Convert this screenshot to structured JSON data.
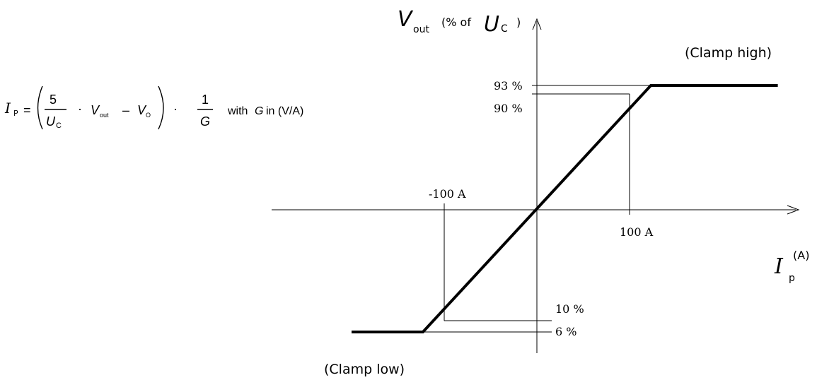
{
  "chart_data": {
    "type": "line",
    "y_axis": {
      "symbol": "V",
      "subscript": "out",
      "unit_prefix": "(% of",
      "unit_symbol": "U",
      "unit_subscript": "C",
      "unit_suffix": ")"
    },
    "x_axis": {
      "symbol": "I",
      "subscript": "p",
      "unit": "(A)"
    },
    "series": [
      {
        "x": [
          -200,
          -123,
          123,
          260
        ],
        "y": [
          6,
          6,
          93,
          93
        ]
      }
    ],
    "reference_points": [
      {
        "x": -100,
        "y": 10
      },
      {
        "x": 100,
        "y": 90
      }
    ],
    "tick_labels": {
      "y_93": "93 %",
      "y_90": "90 %",
      "y_10": "10 %",
      "y_6": "6 %",
      "x_neg100": "-100 A",
      "x_100": "100 A"
    },
    "annotations": {
      "clamp_high": "(Clamp high)",
      "clamp_low": "(Clamp low)"
    }
  },
  "formula": {
    "lhs_symbol": "I",
    "lhs_sub": "P",
    "equals": "=",
    "frac1_num": "5",
    "frac1_den_symbol": "U",
    "frac1_den_sub": "C",
    "dot": "·",
    "v_symbol": "V",
    "v_sub": "out",
    "minus": "–",
    "vo_symbol": "V",
    "vo_sub": "O",
    "frac2_num": "1",
    "frac2_den": "G",
    "with_text": "with",
    "with_symbol": "G",
    "with_unit": "in (V/A)"
  }
}
